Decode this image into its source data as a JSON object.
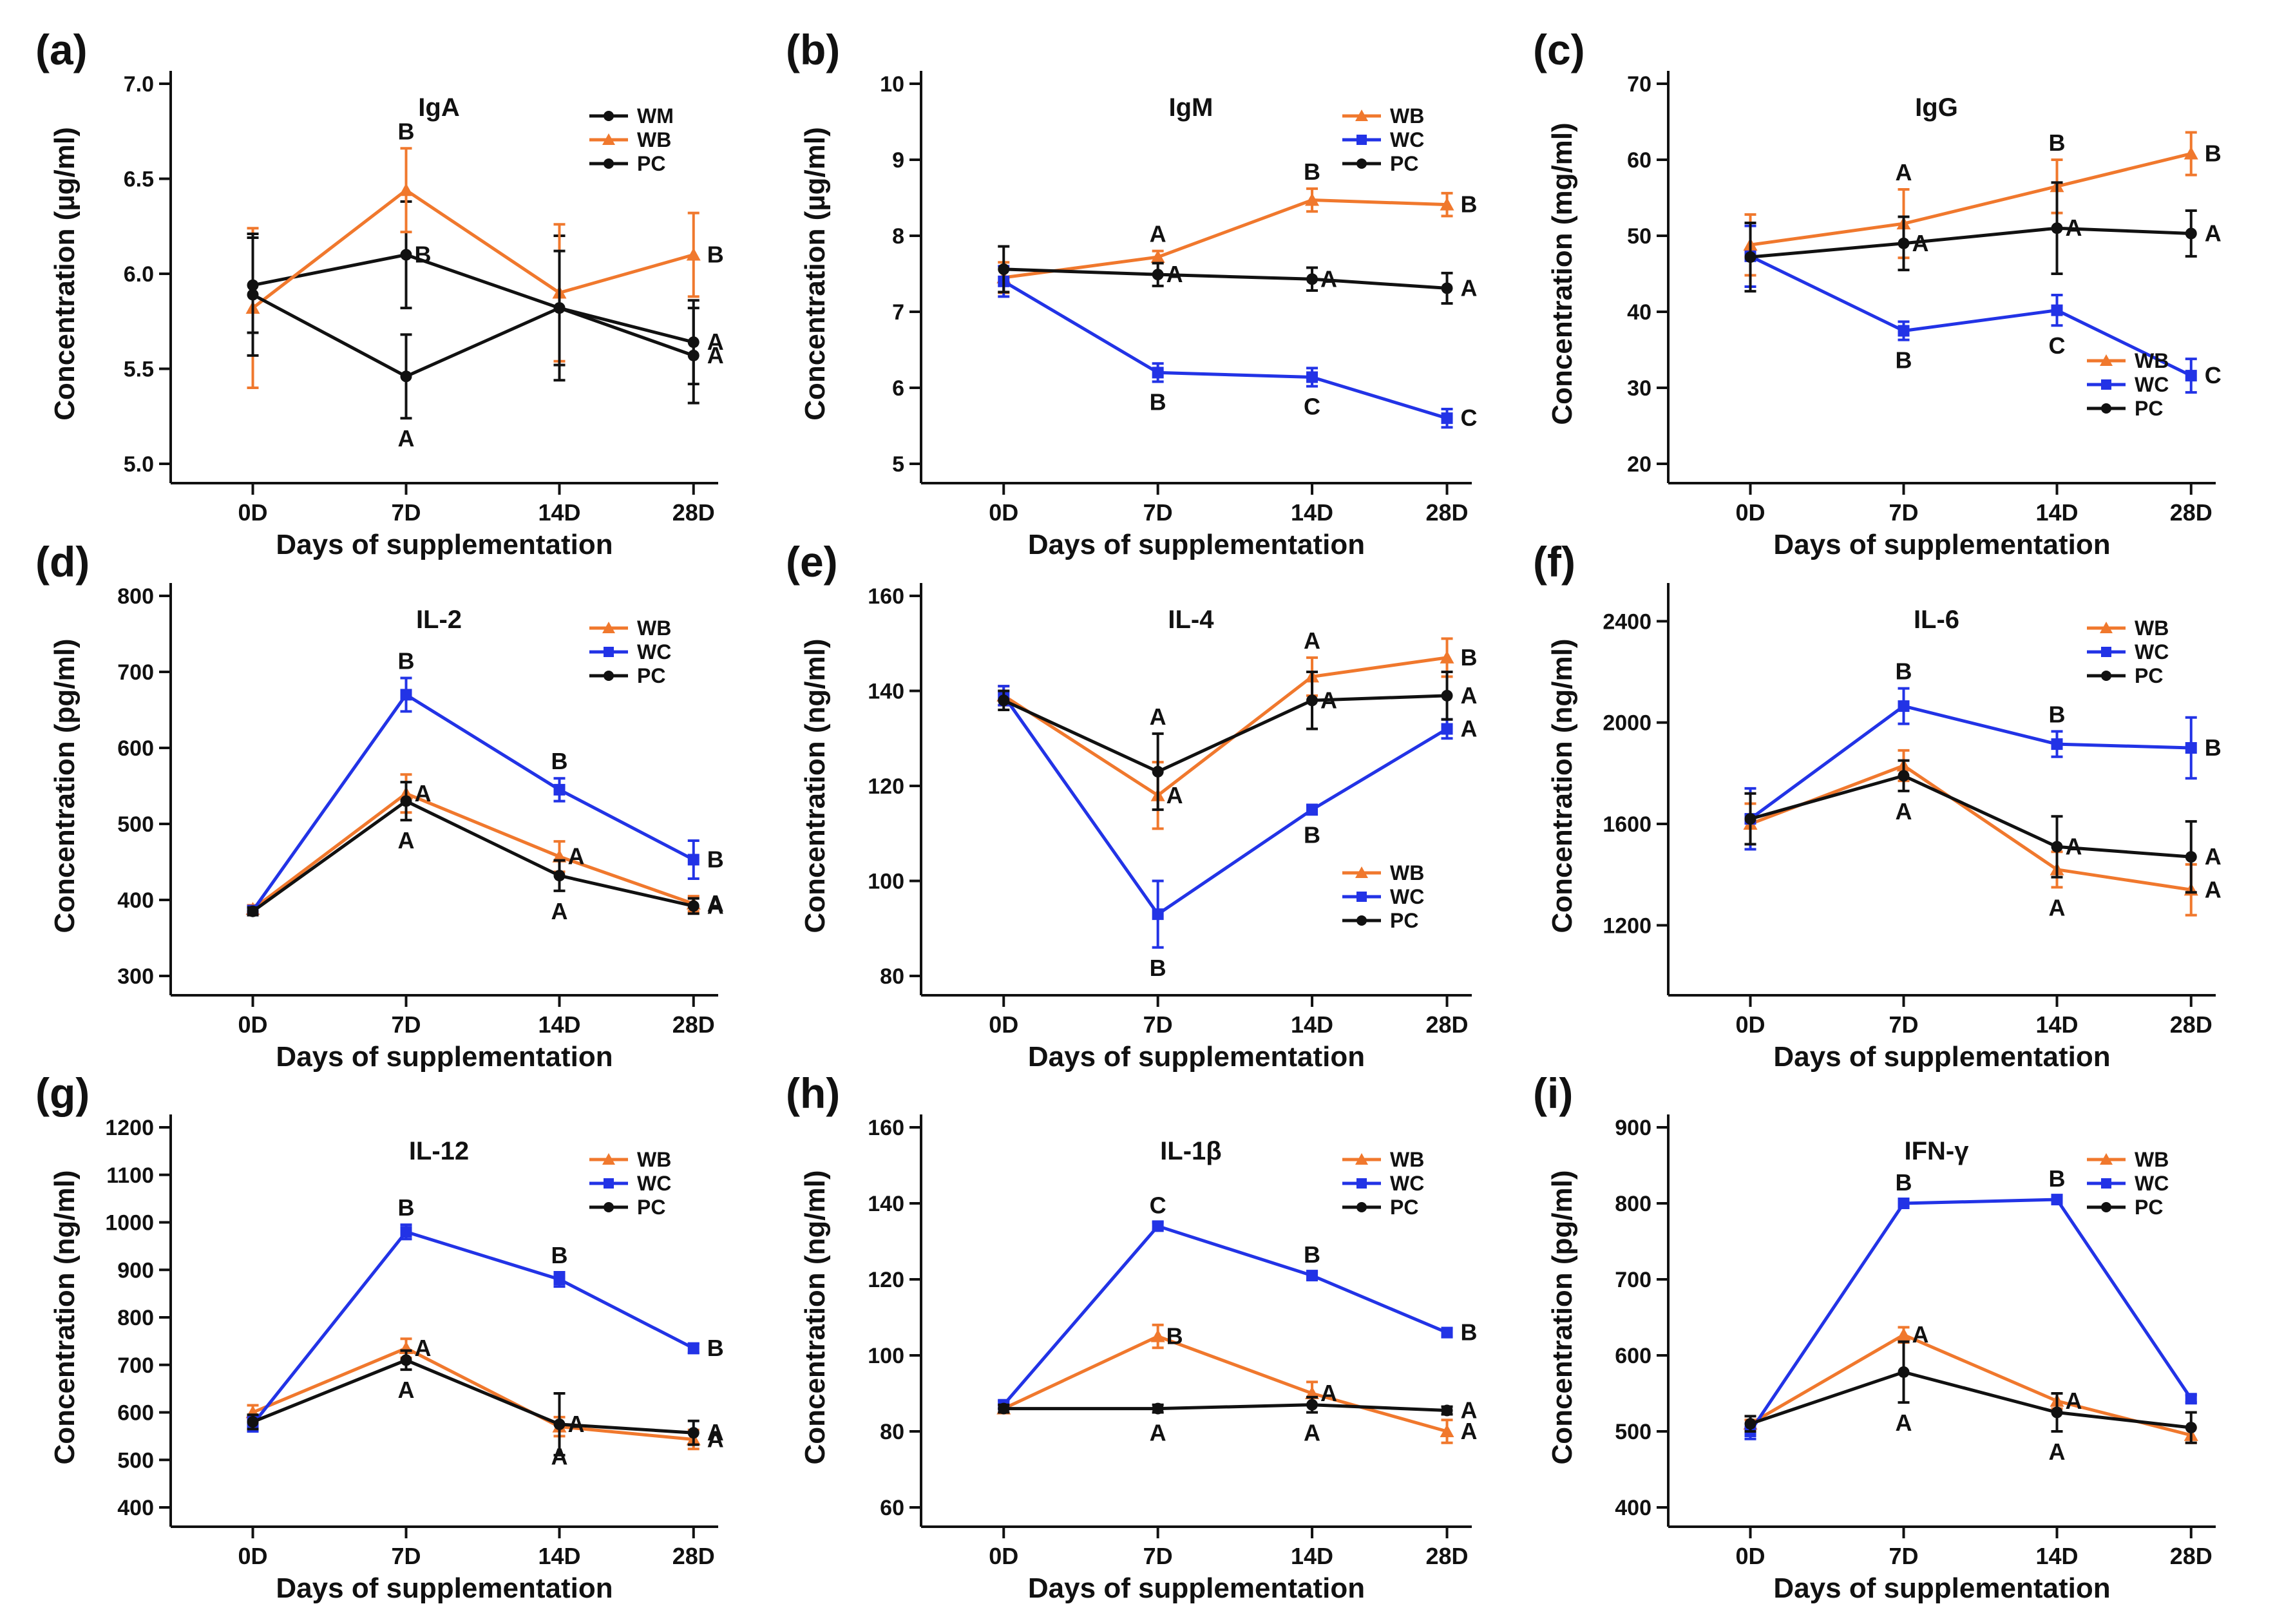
{
  "figure": {
    "xlabel": "Days of supplementation"
  },
  "colors": {
    "WB": "#f0782d",
    "WC": "#2233e6",
    "PC": "#111111",
    "WM": "#111111"
  },
  "chart_data": [
    {
      "panel": "(a)",
      "type": "line",
      "title": "IgA",
      "ylabel": "Concentration (µg/ml)",
      "categories": [
        "0D",
        "7D",
        "14D",
        "28D"
      ],
      "ylim": [
        5.0,
        7.0
      ],
      "yticks": [
        "5.0",
        "5.5",
        "6.0",
        "6.5",
        "7.0"
      ],
      "legend_position": "top-right",
      "series": [
        {
          "name": "WM",
          "values": [
            5.94,
            6.1,
            5.82,
            5.57
          ],
          "errors": [
            0.25,
            0.28,
            0.38,
            0.25
          ],
          "labels": [
            "",
            "B",
            "",
            "A"
          ]
        },
        {
          "name": "WB",
          "values": [
            5.82,
            6.44,
            5.9,
            6.1
          ],
          "errors": [
            0.42,
            0.22,
            0.36,
            0.22
          ],
          "labels": [
            "",
            "B",
            "",
            "B"
          ]
        },
        {
          "name": "PC",
          "values": [
            5.89,
            5.46,
            5.82,
            5.64
          ],
          "errors": [
            0.32,
            0.22,
            0.3,
            0.22
          ],
          "labels": [
            "",
            "A",
            "",
            "A"
          ]
        }
      ]
    },
    {
      "panel": "(b)",
      "type": "line",
      "title": "IgM",
      "ylabel": "Concentration (µg/ml)",
      "categories": [
        "0D",
        "7D",
        "14D",
        "28D"
      ],
      "ylim": [
        5,
        10
      ],
      "yticks": [
        "5",
        "6",
        "7",
        "8",
        "9",
        "10"
      ],
      "legend_position": "top-right",
      "series": [
        {
          "name": "WB",
          "values": [
            7.45,
            7.72,
            8.47,
            8.41
          ],
          "errors": [
            0.2,
            0.08,
            0.15,
            0.15
          ],
          "labels": [
            "",
            "A",
            "B",
            "B"
          ]
        },
        {
          "name": "WC",
          "values": [
            7.4,
            6.2,
            6.14,
            5.6
          ],
          "errors": [
            0.2,
            0.12,
            0.12,
            0.12
          ],
          "labels": [
            "",
            "B",
            "C",
            "C"
          ]
        },
        {
          "name": "PC",
          "values": [
            7.56,
            7.49,
            7.43,
            7.31
          ],
          "errors": [
            0.3,
            0.15,
            0.15,
            0.2
          ],
          "labels": [
            "",
            "A",
            "A",
            "A"
          ]
        }
      ]
    },
    {
      "panel": "(c)",
      "type": "line",
      "title": "IgG",
      "ylabel": "Concentration (mg/ml)",
      "categories": [
        "0D",
        "7D",
        "14D",
        "28D"
      ],
      "ylim": [
        20,
        70
      ],
      "yticks": [
        "20",
        "30",
        "40",
        "50",
        "60",
        "70"
      ],
      "legend_position": "bottom-right",
      "series": [
        {
          "name": "WB",
          "values": [
            48.8,
            51.6,
            56.5,
            60.8
          ],
          "errors": [
            4.0,
            4.5,
            3.5,
            2.8
          ],
          "labels": [
            "",
            "A",
            "B",
            "B"
          ]
        },
        {
          "name": "WC",
          "values": [
            47.3,
            37.5,
            40.2,
            31.6
          ],
          "errors": [
            4.0,
            1.2,
            2.0,
            2.2
          ],
          "labels": [
            "",
            "B",
            "C",
            "C"
          ]
        },
        {
          "name": "PC",
          "values": [
            47.2,
            49.0,
            51.0,
            50.3
          ],
          "errors": [
            4.5,
            3.5,
            6.0,
            3.0
          ],
          "labels": [
            "",
            "A",
            "A",
            "A"
          ]
        }
      ]
    },
    {
      "panel": "(d)",
      "type": "line",
      "title": "IL-2",
      "ylabel": "Concentration (pg/ml)",
      "categories": [
        "0D",
        "7D",
        "14D",
        "28D"
      ],
      "ylim": [
        300,
        800
      ],
      "yticks": [
        "300",
        "400",
        "500",
        "600",
        "700",
        "800"
      ],
      "legend_position": "top-right",
      "series": [
        {
          "name": "WB",
          "values": [
            388,
            540,
            457,
            395
          ],
          "errors": [
            5,
            25,
            20,
            10
          ],
          "labels": [
            "",
            "A",
            "A",
            "A"
          ]
        },
        {
          "name": "WC",
          "values": [
            386,
            670,
            545,
            453
          ],
          "errors": [
            5,
            22,
            15,
            25
          ],
          "labels": [
            "",
            "B",
            "B",
            "B"
          ]
        },
        {
          "name": "PC",
          "values": [
            385,
            530,
            432,
            392
          ],
          "errors": [
            5,
            25,
            20,
            10
          ],
          "labels": [
            "",
            "A",
            "A",
            "A"
          ]
        }
      ]
    },
    {
      "panel": "(e)",
      "type": "line",
      "title": "IL-4",
      "ylabel": "Concentration (ng/ml)",
      "categories": [
        "0D",
        "7D",
        "14D",
        "28D"
      ],
      "ylim": [
        80,
        160
      ],
      "yticks": [
        "80",
        "100",
        "120",
        "140",
        "160"
      ],
      "legend_position": "bottom-right",
      "series": [
        {
          "name": "WB",
          "values": [
            139,
            118,
            143,
            147
          ],
          "errors": [
            2,
            7,
            4,
            4
          ],
          "labels": [
            "",
            "A",
            "A",
            "B"
          ]
        },
        {
          "name": "WC",
          "values": [
            139,
            93,
            115,
            132
          ],
          "errors": [
            2,
            7,
            1,
            2
          ],
          "labels": [
            "",
            "B",
            "B",
            "A"
          ]
        },
        {
          "name": "PC",
          "values": [
            138,
            123,
            138,
            139
          ],
          "errors": [
            2,
            8,
            6,
            5
          ],
          "labels": [
            "",
            "A",
            "A",
            "A"
          ]
        }
      ]
    },
    {
      "panel": "(f)",
      "type": "line",
      "title": "IL-6",
      "ylabel": "Concentration (ng/ml)",
      "categories": [
        "0D",
        "7D",
        "14D",
        "28D"
      ],
      "ylim": [
        1000,
        2500
      ],
      "yticks": [
        "1200",
        "1600",
        "2000",
        "2400"
      ],
      "legend_position": "top-right",
      "series": [
        {
          "name": "WB",
          "values": [
            1600,
            1830,
            1420,
            1340
          ],
          "errors": [
            80,
            60,
            70,
            100
          ],
          "labels": [
            "",
            "",
            "A",
            "A"
          ]
        },
        {
          "name": "WC",
          "values": [
            1620,
            2065,
            1915,
            1900
          ],
          "errors": [
            120,
            70,
            50,
            120
          ],
          "labels": [
            "",
            "B",
            "B",
            "B"
          ]
        },
        {
          "name": "PC",
          "values": [
            1620,
            1790,
            1510,
            1470
          ],
          "errors": [
            100,
            60,
            120,
            140
          ],
          "labels": [
            "",
            "A",
            "A",
            "A"
          ]
        }
      ]
    },
    {
      "panel": "(g)",
      "type": "line",
      "title": "IL-12",
      "ylabel": "Concentration (ng/ml)",
      "categories": [
        "0D",
        "7D",
        "14D",
        "28D"
      ],
      "ylim": [
        400,
        1200
      ],
      "yticks": [
        "400",
        "500",
        "600",
        "700",
        "800",
        "900",
        "1000",
        "1100",
        "1200"
      ],
      "legend_position": "top-right",
      "series": [
        {
          "name": "WB",
          "values": [
            600,
            735,
            570,
            543
          ],
          "errors": [
            15,
            20,
            20,
            20
          ],
          "labels": [
            "",
            "A",
            "A",
            "A"
          ]
        },
        {
          "name": "WC",
          "values": [
            575,
            980,
            880,
            735
          ],
          "errors": [
            15,
            15,
            15,
            10
          ],
          "labels": [
            "",
            "B",
            "B",
            "B"
          ]
        },
        {
          "name": "PC",
          "values": [
            580,
            710,
            575,
            557
          ],
          "errors": [
            15,
            20,
            65,
            25
          ],
          "labels": [
            "",
            "A",
            "A",
            "A"
          ]
        }
      ]
    },
    {
      "panel": "(h)",
      "type": "line",
      "title": "IL-1β",
      "ylabel": "Concentration (ng/ml)",
      "categories": [
        "0D",
        "7D",
        "14D",
        "28D"
      ],
      "ylim": [
        60,
        160
      ],
      "yticks": [
        "60",
        "80",
        "100",
        "120",
        "140",
        "160"
      ],
      "legend_position": "top-right",
      "series": [
        {
          "name": "WB",
          "values": [
            86,
            105,
            90,
            80
          ],
          "errors": [
            1,
            3,
            3,
            3
          ],
          "labels": [
            "",
            "B",
            "A",
            "A"
          ]
        },
        {
          "name": "WC",
          "values": [
            87,
            134,
            121,
            106
          ],
          "errors": [
            1,
            1,
            1,
            1
          ],
          "labels": [
            "",
            "C",
            "B",
            "B"
          ]
        },
        {
          "name": "PC",
          "values": [
            86,
            86,
            87,
            85.5
          ],
          "errors": [
            1,
            1,
            2,
            1
          ],
          "labels": [
            "",
            "A",
            "A",
            "A"
          ]
        }
      ]
    },
    {
      "panel": "(i)",
      "type": "line",
      "title": "IFN-γ",
      "ylabel": "Concentration (pg/ml)",
      "categories": [
        "0D",
        "7D",
        "14D",
        "28D"
      ],
      "ylim": [
        400,
        900
      ],
      "yticks": [
        "400",
        "500",
        "600",
        "700",
        "800",
        "900"
      ],
      "legend_position": "top-right",
      "series": [
        {
          "name": "WB",
          "values": [
            510,
            627,
            540,
            495
          ],
          "errors": [
            5,
            10,
            10,
            10
          ],
          "labels": [
            "",
            "A",
            "A",
            ""
          ]
        },
        {
          "name": "WC",
          "values": [
            500,
            800,
            805,
            543
          ],
          "errors": [
            10,
            5,
            5,
            5
          ],
          "labels": [
            "",
            "B",
            "B",
            ""
          ]
        },
        {
          "name": "PC",
          "values": [
            510,
            578,
            525,
            505
          ],
          "errors": [
            10,
            40,
            25,
            20
          ],
          "labels": [
            "",
            "A",
            "A",
            ""
          ]
        }
      ]
    }
  ]
}
